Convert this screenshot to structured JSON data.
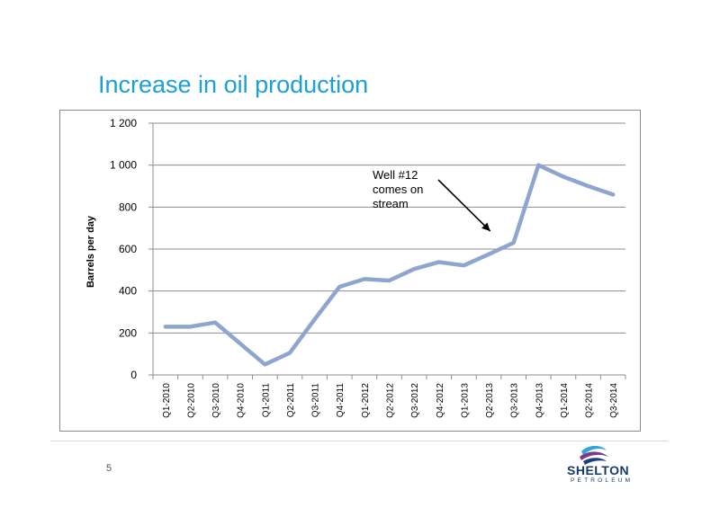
{
  "slide": {
    "title": "Increase in oil production",
    "page_number": "5",
    "logo_name": "SHELTON",
    "logo_sub": "PETROLEUM",
    "logo_icon": "shelton-wave-logo"
  },
  "chart_data": {
    "type": "line",
    "title": "",
    "xlabel": "",
    "ylabel": "Barrels per day",
    "ylim": [
      0,
      1200
    ],
    "yticks": [
      0,
      200,
      400,
      600,
      800,
      1000,
      1200
    ],
    "ytick_labels": [
      "0",
      "200",
      "400",
      "600",
      "800",
      "1 000",
      "1 200"
    ],
    "grid": true,
    "categories": [
      "Q1-2010",
      "Q2-2010",
      "Q3-2010",
      "Q4-2010",
      "Q1-2011",
      "Q2-2011",
      "Q3-2011",
      "Q4-2011",
      "Q1-2012",
      "Q2-2012",
      "Q3-2012",
      "Q4-2012",
      "Q1-2013",
      "Q2-2013",
      "Q3-2013",
      "Q4-2013",
      "Q1-2014",
      "Q2-2014",
      "Q3-2014"
    ],
    "series": [
      {
        "values": [
          230,
          230,
          250,
          150,
          50,
          105,
          265,
          420,
          457,
          450,
          505,
          538,
          522,
          575,
          630,
          1000,
          945,
          900,
          860
        ],
        "color": "#8ea6cf"
      }
    ],
    "annotation": {
      "lines": [
        "Well #12",
        "comes on",
        "stream"
      ],
      "points_to": "Q3-2013"
    }
  }
}
